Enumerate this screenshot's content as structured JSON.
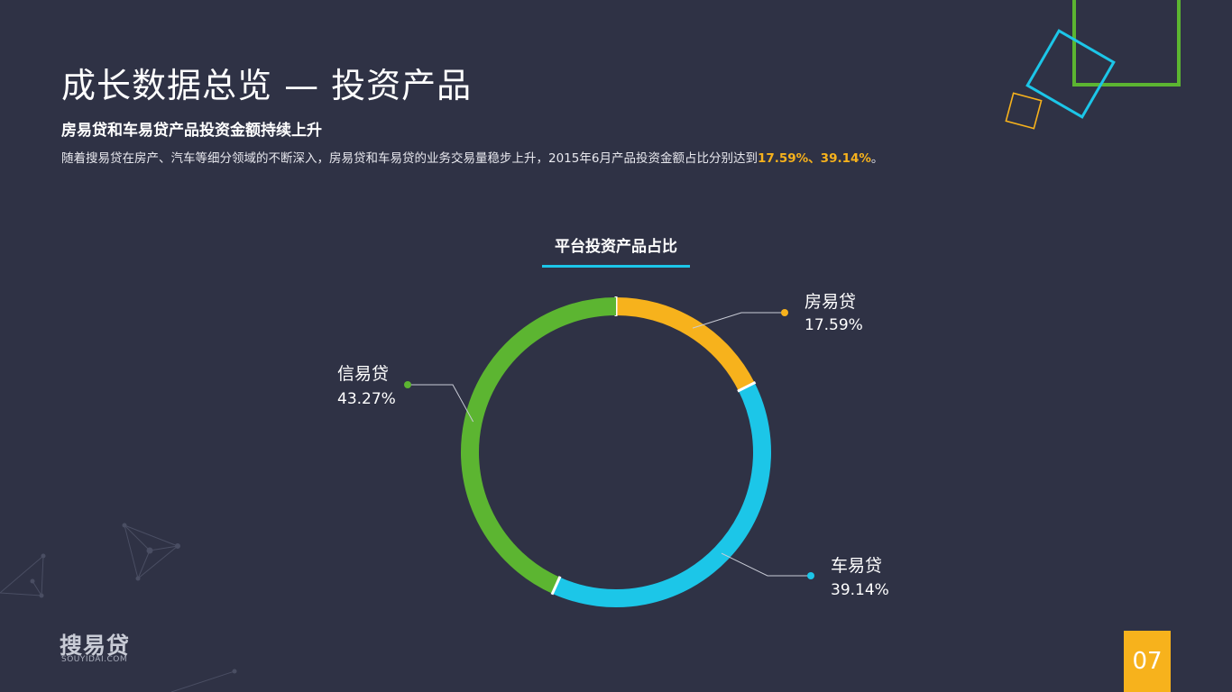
{
  "title": "成长数据总览 — 投资产品",
  "subtitle": "房易贷和车易贷产品投资金额持续上升",
  "description": {
    "text": "随着搜易贷在房产、汽车等细分领域的不断深入，房易贷和车易贷的业务交易量稳步上升，2015年6月产品投资金额占比分别达到",
    "highlight": "17.59%、39.14%",
    "end": "。"
  },
  "chart_data": {
    "type": "pie",
    "donut": true,
    "title": "平台投资产品占比",
    "slices": [
      {
        "label": "房易贷",
        "value": 17.59,
        "value_label": "17.59%",
        "color": "#f7b21c"
      },
      {
        "label": "车易贷",
        "value": 39.14,
        "value_label": "39.14%",
        "color": "#1cc6e8"
      },
      {
        "label": "信易贷",
        "value": 43.27,
        "value_label": "43.27%",
        "color": "#5cb531"
      }
    ]
  },
  "logo": {
    "name": "搜易贷",
    "domain": "SOUYIDAI.COM"
  },
  "page_number": "07"
}
